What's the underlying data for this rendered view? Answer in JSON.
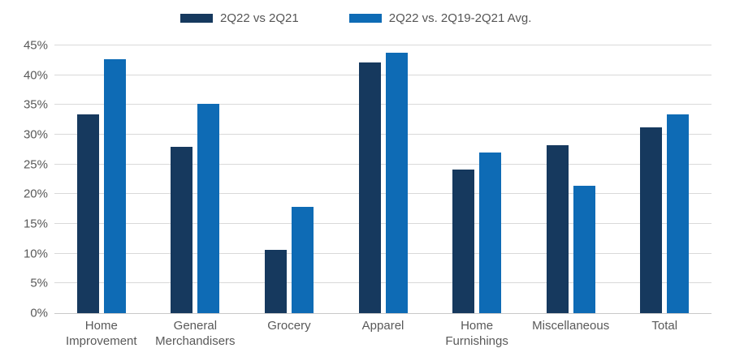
{
  "legend": {
    "items": [
      {
        "label": "2Q22 vs 2Q21",
        "color": "#16395E"
      },
      {
        "label": "2Q22 vs. 2Q19-2Q21 Avg.",
        "color": "#0E6BB5"
      }
    ]
  },
  "chart_data": {
    "type": "bar",
    "title": "",
    "categories": [
      "Home Improvement",
      "General Merchandisers",
      "Grocery",
      "Apparel",
      "Home Furnishings",
      "Miscellaneous",
      "Total"
    ],
    "series": [
      {
        "name": "2Q22 vs 2Q21",
        "color": "#16395E",
        "values": [
          33.4,
          27.9,
          10.7,
          42.2,
          24.2,
          28.2,
          31.2
        ]
      },
      {
        "name": "2Q22 vs. 2Q19-2Q21 Avg.",
        "color": "#0E6BB5",
        "values": [
          42.7,
          35.2,
          17.9,
          43.8,
          27.0,
          21.4,
          33.4
        ]
      }
    ],
    "xlabel": "",
    "ylabel": "",
    "ylim": [
      0,
      45
    ],
    "yticks": [
      0,
      5,
      10,
      15,
      20,
      25,
      30,
      35,
      40,
      45
    ],
    "ytick_suffix": "%",
    "grid": true,
    "legend_position": "top"
  },
  "colors": {
    "grid": "#D9D9D9",
    "baseline": "#C9C9C9",
    "axis_text": "#595959",
    "background": "#FFFFFF"
  }
}
